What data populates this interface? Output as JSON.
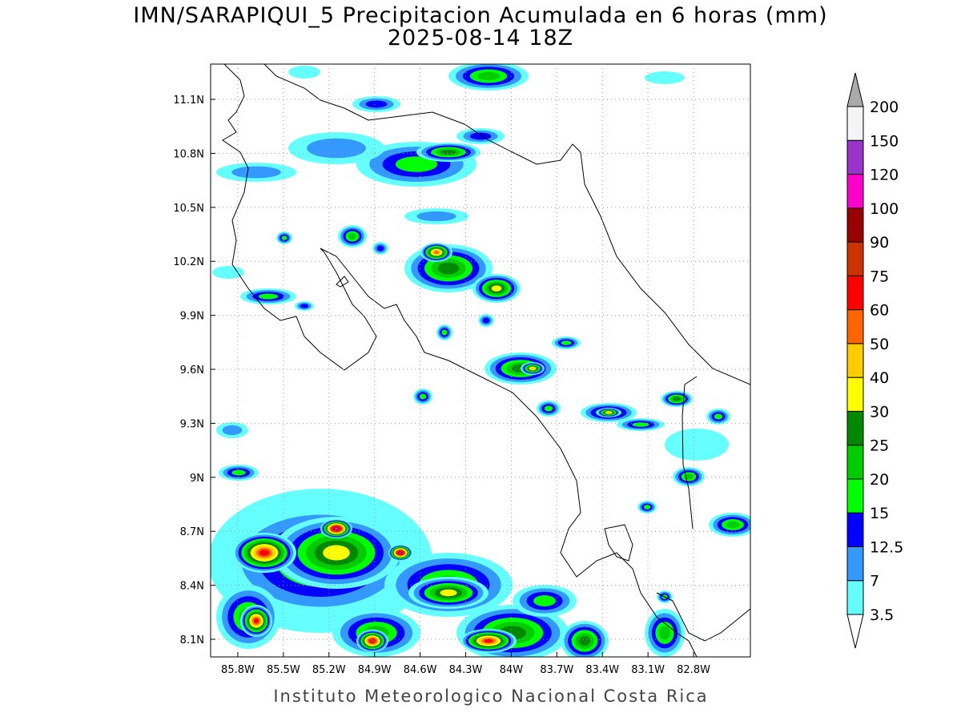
{
  "map": {
    "title": "IMN/SARAPIQUI_5 Precipitacion Acumulada en 6 horas (mm)",
    "subtitle": "2025-08-14 18Z",
    "footer": "Instituto Meteorologico Nacional Costa Rica",
    "xlim": [
      -85.979,
      -82.426
    ],
    "ylim": [
      8.002,
      11.296
    ],
    "lon_ticks": [
      {
        "value": -85.8,
        "label": "85.8W"
      },
      {
        "value": -85.5,
        "label": "85.5W"
      },
      {
        "value": -85.2,
        "label": "85.2W"
      },
      {
        "value": -84.9,
        "label": "84.9W"
      },
      {
        "value": -84.6,
        "label": "84.6W"
      },
      {
        "value": -84.3,
        "label": "84.3W"
      },
      {
        "value": -84,
        "label": "84W"
      },
      {
        "value": -83.7,
        "label": "83.7W"
      },
      {
        "value": -83.4,
        "label": "83.4W"
      },
      {
        "value": -83.1,
        "label": "83.1W"
      },
      {
        "value": -82.8,
        "label": "82.8W"
      }
    ],
    "lat_ticks": [
      {
        "value": 8.1,
        "label": "8.1N"
      },
      {
        "value": 8.4,
        "label": "8.4N"
      },
      {
        "value": 8.7,
        "label": "8.7N"
      },
      {
        "value": 9,
        "label": "9N"
      },
      {
        "value": 9.3,
        "label": "9.3N"
      },
      {
        "value": 9.6,
        "label": "9.6N"
      },
      {
        "value": 9.9,
        "label": "9.9N"
      },
      {
        "value": 10.2,
        "label": "10.2N"
      },
      {
        "value": 10.5,
        "label": "10.5N"
      },
      {
        "value": 10.8,
        "label": "10.8N"
      },
      {
        "value": 11.1,
        "label": "11.1N"
      }
    ],
    "colorbar": {
      "levels": [
        3.5,
        7,
        12.5,
        15,
        20,
        25,
        30,
        40,
        50,
        60,
        75,
        90,
        100,
        120,
        150,
        200
      ],
      "colors": [
        "#66ffff",
        "#3399ff",
        "#0000ff",
        "#00ff00",
        "#00cc00",
        "#008800",
        "#ffff00",
        "#ffcc00",
        "#ff6600",
        "#ff0000",
        "#cc3300",
        "#990000",
        "#ff00cc",
        "#9933cc",
        "#f5f5f5"
      ],
      "below_color": "#ffffff",
      "above_color": "#aaaaaa"
    }
  }
}
